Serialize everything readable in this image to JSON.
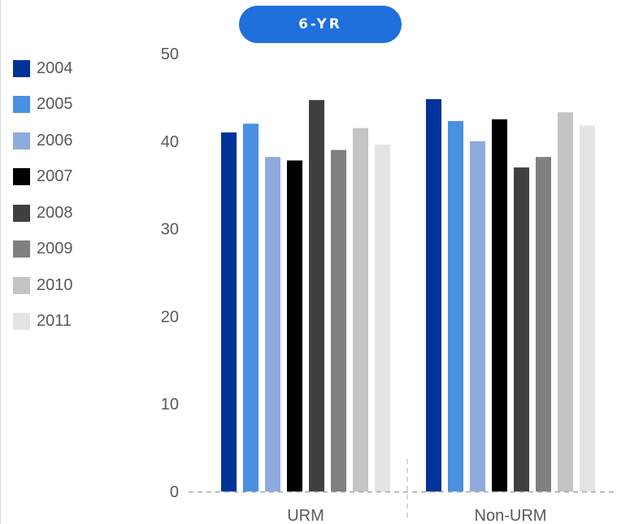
{
  "badge": {
    "label": "6-YR"
  },
  "chart_data": {
    "type": "bar",
    "title": "",
    "xlabel": "",
    "ylabel": "",
    "ylim": [
      0,
      50
    ],
    "yticks": [
      0,
      10,
      20,
      30,
      40,
      50
    ],
    "categories": [
      "URM",
      "Non-URM"
    ],
    "legend_position": "left",
    "grid": false,
    "series": [
      {
        "name": "2004",
        "color": "#003399",
        "values": [
          41.0,
          44.8
        ]
      },
      {
        "name": "2005",
        "color": "#4a90e2",
        "values": [
          42.0,
          42.3
        ]
      },
      {
        "name": "2006",
        "color": "#8faadc",
        "values": [
          38.2,
          40.0
        ]
      },
      {
        "name": "2007",
        "color": "#000000",
        "values": [
          37.8,
          42.5
        ]
      },
      {
        "name": "2008",
        "color": "#404040",
        "values": [
          44.7,
          37.0
        ]
      },
      {
        "name": "2009",
        "color": "#808080",
        "values": [
          39.0,
          38.2
        ]
      },
      {
        "name": "2010",
        "color": "#c4c4c4",
        "values": [
          41.5,
          43.3
        ]
      },
      {
        "name": "2011",
        "color": "#e4e4e4",
        "values": [
          39.6,
          41.8
        ]
      }
    ]
  }
}
